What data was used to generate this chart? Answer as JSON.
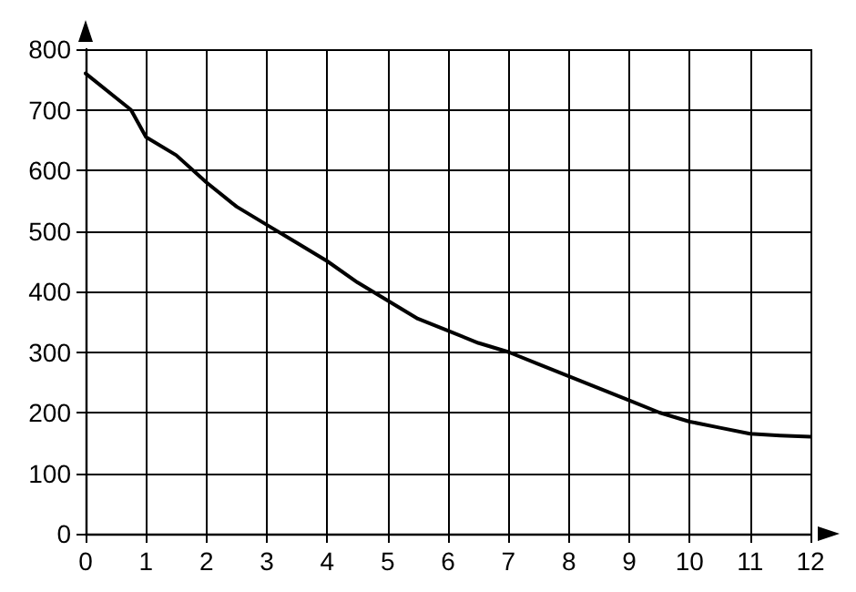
{
  "chart_data": {
    "type": "line",
    "x": [
      0,
      0.5,
      0.75,
      1,
      1.5,
      2,
      2.5,
      3,
      3.5,
      4,
      4.5,
      5,
      5.5,
      6,
      6.5,
      7,
      7.5,
      8,
      8.5,
      9,
      9.5,
      10,
      10.5,
      11,
      11.5,
      12
    ],
    "series": [
      {
        "color": "#000000",
        "values": [
          760,
          720,
          700,
          655,
          625,
          580,
          540,
          510,
          480,
          450,
          415,
          385,
          355,
          335,
          315,
          300,
          280,
          260,
          240,
          220,
          200,
          185,
          175,
          165,
          162,
          160
        ]
      }
    ],
    "xlim": [
      0,
      12
    ],
    "xticks": [
      0,
      1,
      2,
      3,
      4,
      5,
      6,
      7,
      8,
      9,
      10,
      11,
      12
    ],
    "ylim": [
      0,
      800
    ],
    "yticks": [
      0,
      100,
      200,
      300,
      400,
      500,
      600,
      700,
      800
    ],
    "grid": true,
    "marker": "none",
    "line_style": "solid"
  }
}
